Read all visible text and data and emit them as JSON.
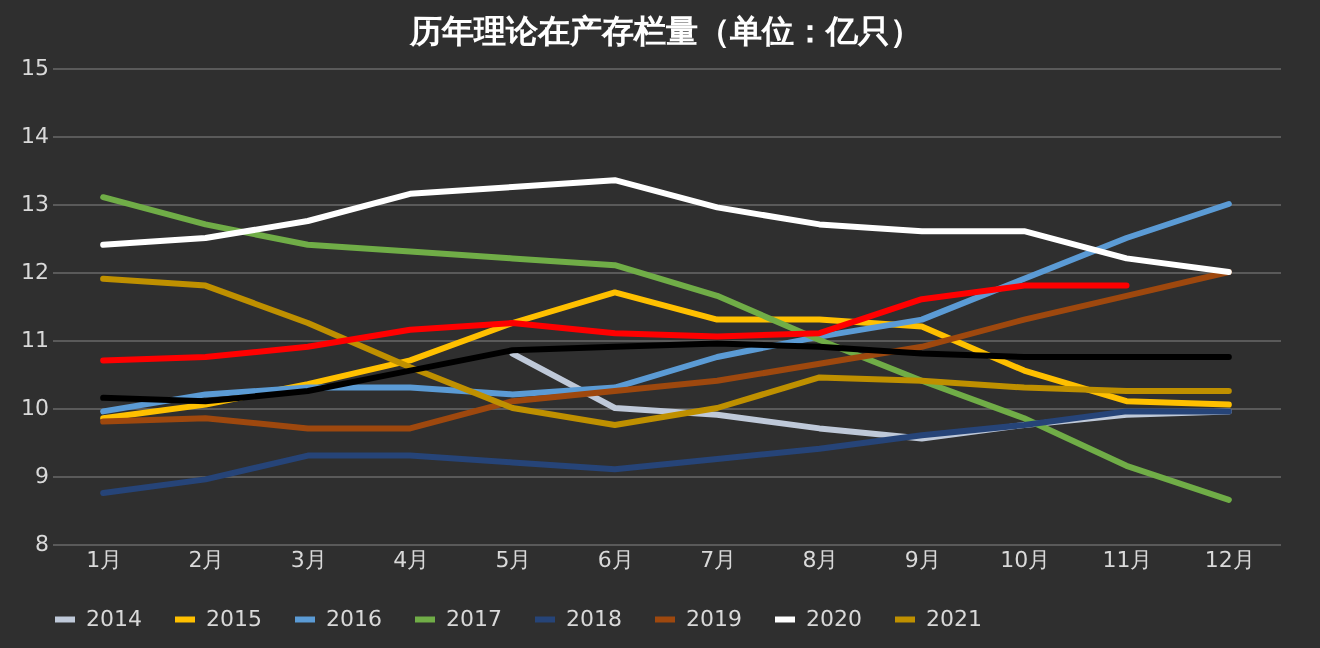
{
  "chart_data": {
    "type": "line",
    "title": "历年理论在产存栏量（单位：亿只）",
    "categories": [
      "1月",
      "2月",
      "3月",
      "4月",
      "5月",
      "6月",
      "7月",
      "8月",
      "9月",
      "10月",
      "11月",
      "12月"
    ],
    "series": [
      {
        "name": "2014",
        "color": "#bfc9d9",
        "values": [
          null,
          null,
          null,
          null,
          10.8,
          10.0,
          9.9,
          9.7,
          9.55,
          9.75,
          9.9,
          9.95
        ]
      },
      {
        "name": "2015",
        "color": "#ffc000",
        "values": [
          9.85,
          10.05,
          10.35,
          10.7,
          11.25,
          11.7,
          11.3,
          11.3,
          11.2,
          10.55,
          10.1,
          10.05
        ]
      },
      {
        "name": "2016",
        "color": "#5b9bd5",
        "values": [
          9.95,
          10.2,
          10.3,
          10.3,
          10.2,
          10.3,
          10.75,
          11.05,
          11.3,
          11.9,
          12.5,
          13.0
        ]
      },
      {
        "name": "2017",
        "color": "#70ad47",
        "values": [
          13.1,
          12.7,
          12.4,
          12.3,
          12.2,
          12.1,
          11.65,
          11.0,
          10.4,
          9.85,
          9.15,
          8.65
        ]
      },
      {
        "name": "2018",
        "color": "#264478",
        "values": [
          8.75,
          8.95,
          9.3,
          9.3,
          9.2,
          9.1,
          9.25,
          9.4,
          9.6,
          9.75,
          9.95,
          9.95
        ]
      },
      {
        "name": "2019",
        "color": "#9e480e",
        "values": [
          9.8,
          9.85,
          9.7,
          9.7,
          10.1,
          10.25,
          10.4,
          10.65,
          10.9,
          11.3,
          11.65,
          12.0
        ]
      },
      {
        "name": "2020",
        "color": "#ffffff",
        "values": [
          12.4,
          12.5,
          12.75,
          13.15,
          13.25,
          13.35,
          12.95,
          12.7,
          12.6,
          12.6,
          12.2,
          12.0
        ]
      },
      {
        "name": "2021",
        "color": "#bf9000",
        "values": [
          11.9,
          11.8,
          11.25,
          10.6,
          10.0,
          9.75,
          10.0,
          10.45,
          10.4,
          10.3,
          10.25,
          10.25
        ]
      },
      {
        "color": "#000000",
        "values": [
          10.15,
          10.1,
          10.25,
          10.55,
          10.85,
          10.9,
          10.95,
          10.9,
          10.8,
          10.75,
          10.75,
          10.75
        ]
      },
      {
        "color": "#ff0000",
        "values": [
          10.7,
          10.75,
          10.9,
          11.15,
          11.25,
          11.1,
          11.05,
          11.1,
          11.6,
          11.8,
          11.8,
          null
        ]
      }
    ],
    "ylim": [
      8,
      15
    ],
    "yticks": [
      8,
      9,
      10,
      11,
      12,
      13,
      14,
      15
    ],
    "grid": "y",
    "legend": "bottom"
  }
}
